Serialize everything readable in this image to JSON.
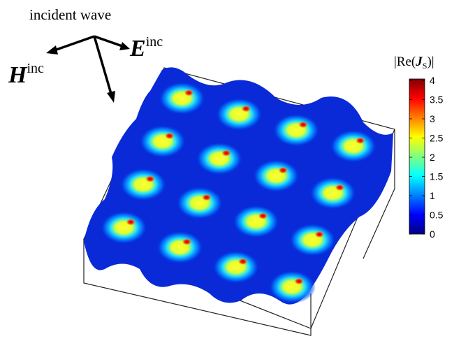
{
  "chart_data": {
    "type": "surface",
    "annotations": {
      "incident": "incident wave",
      "h_field": {
        "symbol": "H",
        "superscript": "inc"
      },
      "e_field": {
        "symbol": "E",
        "superscript": "inc"
      }
    },
    "colorbar_label": {
      "before": "|Re(",
      "symbol": "J",
      "subscript": "S",
      "after": ")|"
    },
    "colormap": "jet",
    "clim": [
      0,
      4
    ],
    "cticks": [
      0,
      0.5,
      1,
      1.5,
      2,
      2.5,
      3,
      3.5,
      4
    ]
  }
}
